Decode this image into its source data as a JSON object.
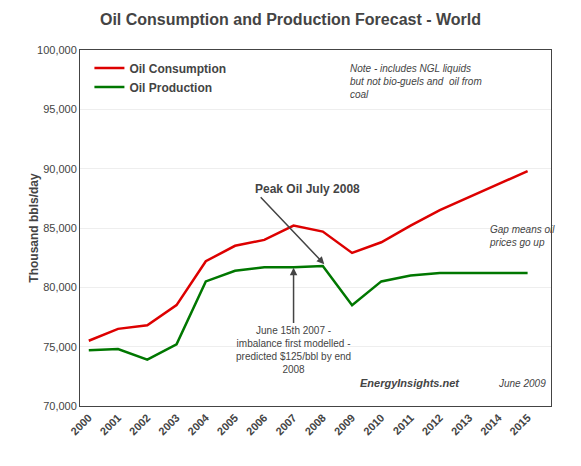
{
  "chart_data": {
    "type": "line",
    "title": "Oil Consumption and Production Forecast - World",
    "ylabel": "Thousand bbls/day",
    "x": [
      2000,
      2001,
      2002,
      2003,
      2004,
      2005,
      2006,
      2007,
      2008,
      2009,
      2010,
      2011,
      2012,
      2013,
      2014,
      2015
    ],
    "series": [
      {
        "name": "Oil Consumption",
        "color": "#dd0000",
        "values": [
          75500,
          76500,
          76800,
          78500,
          82200,
          83500,
          84000,
          85200,
          84700,
          82900,
          83800,
          85200,
          86500,
          87600,
          88700,
          89800
        ]
      },
      {
        "name": "Oil Production",
        "color": "#007700",
        "values": [
          74700,
          74800,
          73900,
          75200,
          80500,
          81400,
          81700,
          81700,
          81800,
          78500,
          80500,
          81000,
          81200,
          81200,
          81200,
          81200
        ]
      }
    ],
    "xlim": [
      1999.7,
      2015.8
    ],
    "xticks": [
      2000,
      2001,
      2002,
      2003,
      2004,
      2005,
      2006,
      2007,
      2008,
      2009,
      2010,
      2011,
      2012,
      2013,
      2014,
      2015
    ],
    "ylim": [
      70000,
      100000
    ],
    "yticks": [
      {
        "value": 70000,
        "label": "70,000"
      },
      {
        "value": 75000,
        "label": "75,000"
      },
      {
        "value": 80000,
        "label": "80,000"
      },
      {
        "value": 85000,
        "label": "85,000"
      },
      {
        "value": 90000,
        "label": "90,000"
      },
      {
        "value": 95000,
        "label": "95,000"
      },
      {
        "value": 100000,
        "label": "100,000"
      }
    ],
    "grid": true,
    "legend": "upper left",
    "annotations": [
      "Note - includes NGL liquids\nbut not bio-guels and  oil from\ncoal",
      "Peak Oil July 2008",
      "June 15th 2007 -\nimbalance first modelled -\npredicted $125/bbl by end\n2008",
      "Gap means oil\nprices go up",
      "EnergyInsights.net",
      "June 2009"
    ]
  }
}
